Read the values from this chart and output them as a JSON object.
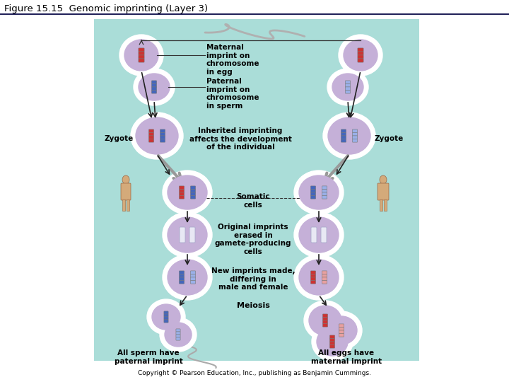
{
  "title": "Figure 15.15  Genomic imprinting (Layer 3)",
  "copyright": "Copyright © Pearson Education, Inc., publishing as Benjamin Cummings.",
  "bg_color": "#aaddd8",
  "fig_bg": "#ffffff",
  "labels": {
    "maternal_imprint": "Maternal\nimprint on\nchromosome\nin egg",
    "paternal_imprint": "Paternal\nimprint on\nchromosome\nin sperm",
    "inherited": "Inherited imprinting\naffects the development\nof the individual",
    "zygote_left": "Zygote",
    "zygote_right": "Zygote",
    "somatic": "Somatic\ncells",
    "original": "Original imprints\nerased in\ngamete-producing\ncells",
    "new_imprints": "New imprints made,\ndiffering in\nmale and female",
    "meiosis": "Meiosis",
    "sperm_label": "All sperm have\npaternal imprint",
    "egg_label": "All eggs have\nmaternal imprint"
  },
  "cell_fill": "#c5b0d8",
  "chrom_red": "#cc3333",
  "chrom_blue": "#4466bb",
  "chrom_pink": "#e8a0a0",
  "chrom_lblue": "#9ab0e8"
}
